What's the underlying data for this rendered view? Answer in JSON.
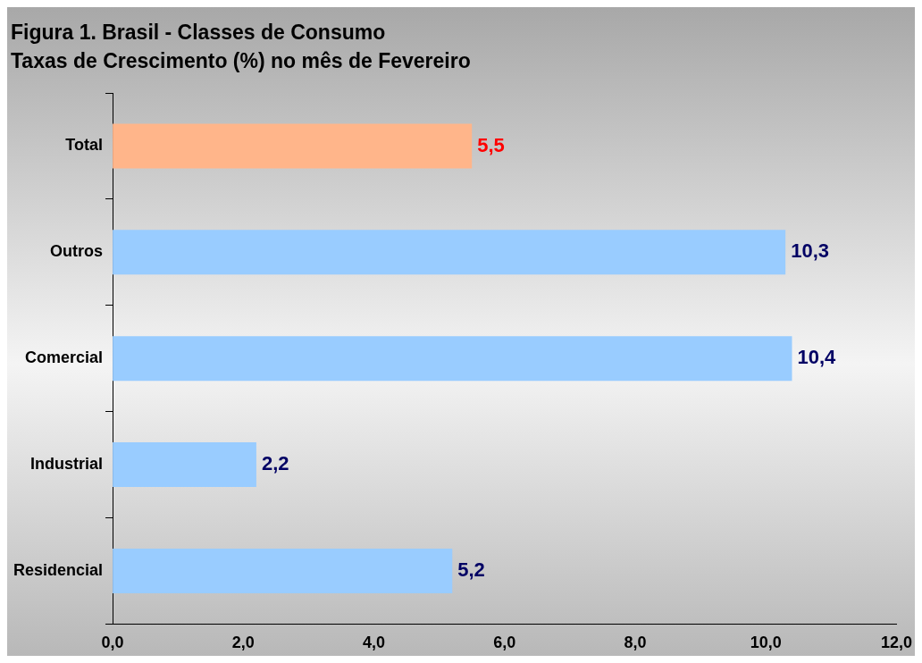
{
  "chart_data": {
    "type": "bar",
    "orientation": "horizontal",
    "title": "Figura 1. Brasil - Classes de Consumo",
    "subtitle": "Taxas de Crescimento (%) no mês de Fevereiro",
    "categories": [
      "Total",
      "Outros",
      "Comercial",
      "Industrial",
      "Residencial"
    ],
    "values": [
      5.5,
      10.3,
      10.4,
      2.2,
      5.2
    ],
    "colors": [
      "#ffb58a",
      "#99ccff",
      "#99ccff",
      "#99ccff",
      "#99ccff"
    ],
    "value_labels": [
      "5,5",
      "10,3",
      "10,4",
      "2,2",
      "5,2"
    ],
    "xlim": [
      0,
      12
    ],
    "xticks": [
      {
        "value": 0,
        "label": "0,0"
      },
      {
        "value": 2,
        "label": "2,0"
      },
      {
        "value": 4,
        "label": "4,0"
      },
      {
        "value": 6,
        "label": "6,0"
      },
      {
        "value": 8,
        "label": "8,0"
      },
      {
        "value": 10,
        "label": "10,0"
      },
      {
        "value": 12,
        "label": "12,0"
      }
    ],
    "grid": false,
    "legend": false
  }
}
